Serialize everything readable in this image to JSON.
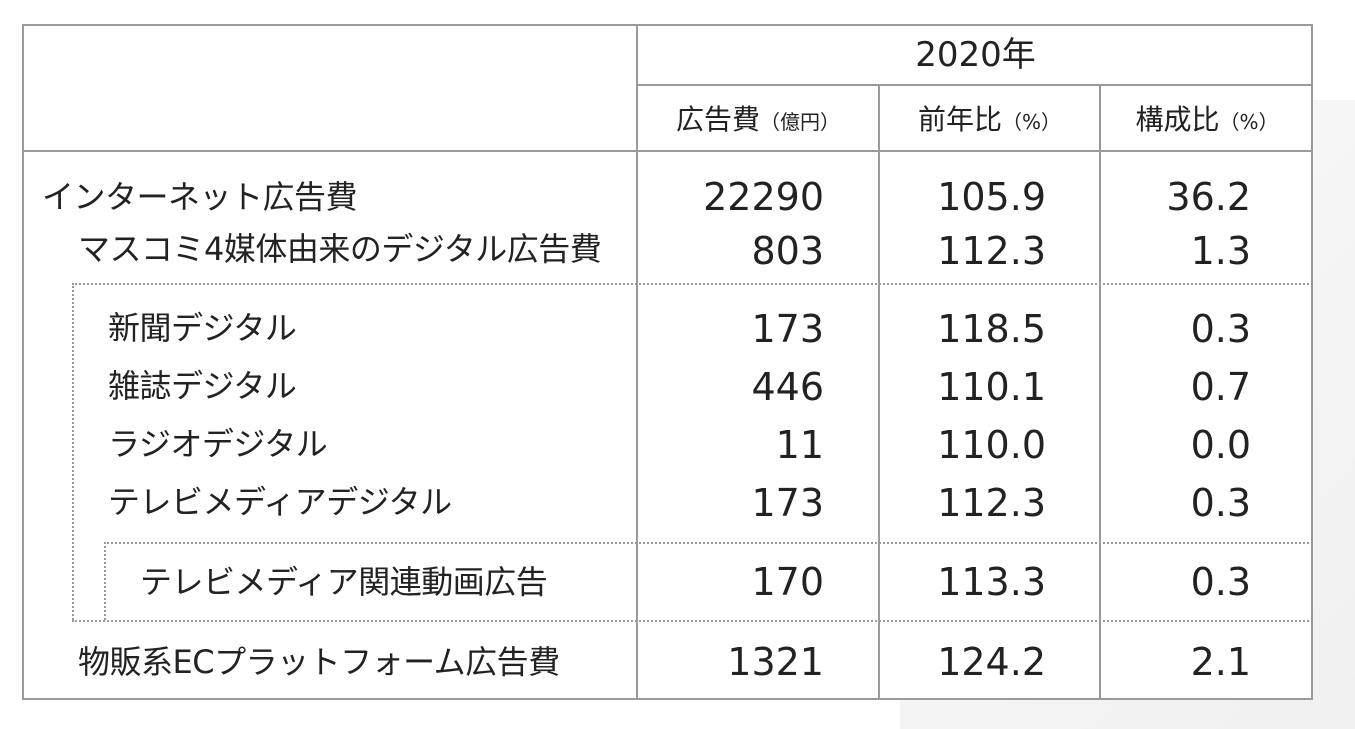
{
  "header": {
    "year": "2020年",
    "col_ad": "広告費",
    "col_ad_unit": "（億円）",
    "col_yoy": "前年比",
    "col_yoy_unit": "（%）",
    "col_share": "構成比",
    "col_share_unit": "（%）"
  },
  "rows": [
    {
      "label": "インターネット広告費",
      "ad": "22290",
      "yoy": "105.9",
      "share": "36.2"
    },
    {
      "label": "マスコミ4媒体由来のデジタル広告費",
      "ad": "803",
      "yoy": "112.3",
      "share": "1.3"
    },
    {
      "label": "新聞デジタル",
      "ad": "173",
      "yoy": "118.5",
      "share": "0.3"
    },
    {
      "label": "雑誌デジタル",
      "ad": "446",
      "yoy": "110.1",
      "share": "0.7"
    },
    {
      "label": "ラジオデジタル",
      "ad": "11",
      "yoy": "110.0",
      "share": "0.0"
    },
    {
      "label": "テレビメディアデジタル",
      "ad": "173",
      "yoy": "112.3",
      "share": "0.3"
    },
    {
      "label": "テレビメディア関連動画広告",
      "ad": "170",
      "yoy": "113.3",
      "share": "0.3"
    },
    {
      "label": "物販系ECプラットフォーム広告費",
      "ad": "1321",
      "yoy": "124.2",
      "share": "2.1"
    }
  ]
}
